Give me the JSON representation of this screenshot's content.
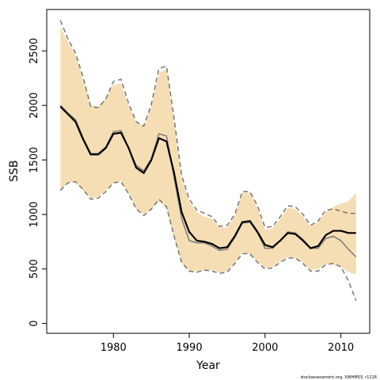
{
  "chart_data": {
    "type": "line",
    "xlabel": "Year",
    "ylabel": "SSB",
    "xlim": [
      1971.2,
      2013.8
    ],
    "ylim": [
      -90,
      2880
    ],
    "x_ticks": [
      1980,
      1990,
      2000,
      2010
    ],
    "y_ticks": [
      0,
      500,
      1000,
      1500,
      2000,
      2500
    ],
    "x": [
      1973,
      1974,
      1975,
      1976,
      1977,
      1978,
      1979,
      1980,
      1981,
      1982,
      1983,
      1984,
      1985,
      1986,
      1987,
      1988,
      1989,
      1990,
      1991,
      1992,
      1993,
      1994,
      1995,
      1996,
      1997,
      1998,
      1999,
      2000,
      2001,
      2002,
      2003,
      2004,
      2005,
      2006,
      2007,
      2008,
      2009,
      2010,
      2011,
      2012
    ],
    "series": [
      {
        "role": "band-upper",
        "values": [
          2720,
          2580,
          2460,
          2240,
          2000,
          1990,
          2070,
          2190,
          2200,
          2000,
          1840,
          1810,
          1990,
          2300,
          2330,
          1850,
          1340,
          1120,
          1020,
          980,
          960,
          880,
          880,
          990,
          1200,
          1200,
          1060,
          860,
          870,
          960,
          1060,
          1050,
          980,
          890,
          930,
          1020,
          1070,
          1100,
          1120,
          1200
        ]
      },
      {
        "role": "band-lower",
        "values": [
          1230,
          1290,
          1300,
          1220,
          1150,
          1160,
          1220,
          1290,
          1310,
          1190,
          1050,
          1000,
          1050,
          1120,
          1060,
          790,
          560,
          480,
          480,
          490,
          490,
          470,
          480,
          560,
          650,
          640,
          570,
          510,
          520,
          570,
          610,
          600,
          560,
          490,
          500,
          550,
          540,
          520,
          470,
          450
        ]
      },
      {
        "role": "retro-upper",
        "values": [
          2780,
          2610,
          2480,
          2260,
          1990,
          1980,
          2060,
          2220,
          2240,
          2020,
          1850,
          1810,
          2010,
          2340,
          2360,
          1880,
          1360,
          1140,
          1040,
          1010,
          980,
          890,
          900,
          1000,
          1210,
          1210,
          1080,
          880,
          890,
          980,
          1080,
          1070,
          1000,
          900,
          940,
          1040,
          1050,
          1030,
          1010,
          1010
        ]
      },
      {
        "role": "retro-lower",
        "values": [
          1220,
          1290,
          1300,
          1230,
          1140,
          1150,
          1210,
          1290,
          1300,
          1190,
          1050,
          990,
          1050,
          1140,
          1070,
          800,
          560,
          480,
          470,
          490,
          480,
          460,
          470,
          550,
          640,
          640,
          560,
          500,
          510,
          560,
          600,
          600,
          550,
          480,
          480,
          540,
          550,
          520,
          390,
          210
        ]
      },
      {
        "role": "retro-median",
        "values": [
          2000,
          1930,
          1870,
          1700,
          1560,
          1560,
          1620,
          1760,
          1770,
          1610,
          1450,
          1400,
          1510,
          1740,
          1720,
          1340,
          960,
          760,
          740,
          740,
          710,
          670,
          680,
          790,
          920,
          930,
          830,
          690,
          690,
          760,
          840,
          830,
          770,
          690,
          690,
          780,
          800,
          760,
          680,
          610
        ]
      },
      {
        "role": "estimate",
        "values": [
          1990,
          1920,
          1850,
          1690,
          1550,
          1550,
          1610,
          1740,
          1750,
          1610,
          1430,
          1380,
          1500,
          1700,
          1670,
          1380,
          1020,
          840,
          760,
          750,
          730,
          690,
          700,
          800,
          930,
          940,
          840,
          720,
          700,
          760,
          830,
          820,
          760,
          690,
          710,
          810,
          850,
          850,
          830,
          830
        ]
      }
    ],
    "colors": {
      "band_fill": "#f5deb3",
      "estimate": "#000000",
      "retro_median": "#808080",
      "retro_bounds": "#6e6e6e"
    }
  },
  "footnote": "stockassessment.org, XWHM03, r1116"
}
